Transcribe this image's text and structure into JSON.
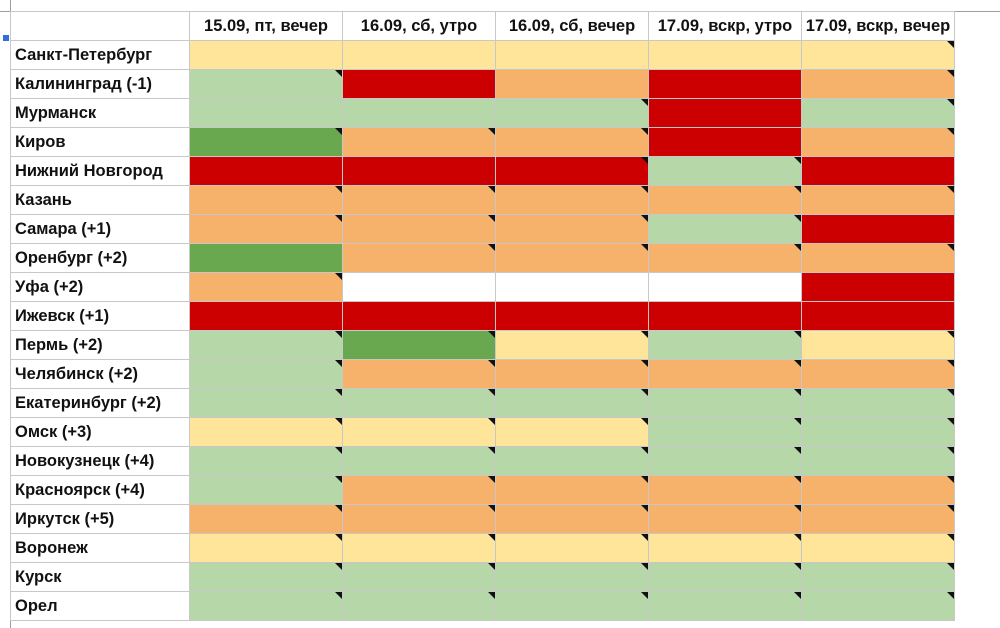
{
  "colors": {
    "red": "#cc0000",
    "orange": "#f6b26b",
    "yellow": "#ffe599",
    "lightgreen": "#b6d7a8",
    "green": "#6aa84f",
    "white": "#ffffff"
  },
  "sheet": {
    "headers": [
      "",
      "15.09, пт, вечер",
      "16.09, сб, утро",
      "16.09, сб, вечер",
      "17.09, вскр, утро",
      "17.09, вскр, вечер"
    ],
    "rows": [
      {
        "city": "Санкт-Петербург",
        "cells": [
          "yellow",
          "yellow",
          "yellow",
          "yellow",
          "yellow"
        ],
        "marks": [
          0,
          0,
          0,
          0,
          1
        ]
      },
      {
        "city": "Калининград (-1)",
        "cells": [
          "lightgreen",
          "red",
          "orange",
          "red",
          "orange"
        ],
        "marks": [
          1,
          0,
          0,
          0,
          1
        ]
      },
      {
        "city": "Мурманск",
        "cells": [
          "lightgreen",
          "lightgreen",
          "lightgreen",
          "red",
          "lightgreen"
        ],
        "marks": [
          0,
          0,
          1,
          0,
          1
        ]
      },
      {
        "city": "Киров",
        "cells": [
          "green",
          "orange",
          "orange",
          "red",
          "orange"
        ],
        "marks": [
          1,
          1,
          1,
          0,
          1
        ]
      },
      {
        "city": "Нижний Новгород",
        "cells": [
          "red",
          "red",
          "red",
          "lightgreen",
          "red"
        ],
        "marks": [
          0,
          0,
          1,
          1,
          0
        ]
      },
      {
        "city": "Казань",
        "cells": [
          "orange",
          "orange",
          "orange",
          "orange",
          "orange"
        ],
        "marks": [
          1,
          1,
          1,
          1,
          1
        ]
      },
      {
        "city": "Самара (+1)",
        "cells": [
          "orange",
          "orange",
          "orange",
          "lightgreen",
          "red"
        ],
        "marks": [
          1,
          1,
          1,
          1,
          0
        ]
      },
      {
        "city": "Оренбург (+2)",
        "cells": [
          "green",
          "orange",
          "orange",
          "orange",
          "orange"
        ],
        "marks": [
          0,
          1,
          1,
          1,
          1
        ]
      },
      {
        "city": "Уфа (+2)",
        "cells": [
          "orange",
          "white",
          "white",
          "white",
          "red"
        ],
        "marks": [
          1,
          0,
          0,
          0,
          0
        ]
      },
      {
        "city": "Ижевск (+1)",
        "cells": [
          "red",
          "red",
          "red",
          "red",
          "red"
        ],
        "marks": [
          0,
          0,
          0,
          0,
          0
        ]
      },
      {
        "city": "Пермь (+2)",
        "cells": [
          "lightgreen",
          "green",
          "yellow",
          "lightgreen",
          "yellow"
        ],
        "marks": [
          1,
          1,
          1,
          1,
          1
        ]
      },
      {
        "city": "Челябинск (+2)",
        "cells": [
          "lightgreen",
          "orange",
          "orange",
          "orange",
          "orange"
        ],
        "marks": [
          1,
          1,
          1,
          1,
          1
        ]
      },
      {
        "city": "Екатеринбург (+2)",
        "cells": [
          "lightgreen",
          "lightgreen",
          "lightgreen",
          "lightgreen",
          "lightgreen"
        ],
        "marks": [
          1,
          1,
          1,
          1,
          1
        ]
      },
      {
        "city": "Омск (+3)",
        "cells": [
          "yellow",
          "yellow",
          "yellow",
          "lightgreen",
          "lightgreen"
        ],
        "marks": [
          1,
          1,
          1,
          1,
          1
        ]
      },
      {
        "city": "Новокузнецк (+4)",
        "cells": [
          "lightgreen",
          "lightgreen",
          "lightgreen",
          "lightgreen",
          "lightgreen"
        ],
        "marks": [
          1,
          1,
          1,
          1,
          1
        ]
      },
      {
        "city": "Красноярск (+4)",
        "cells": [
          "lightgreen",
          "orange",
          "orange",
          "orange",
          "orange"
        ],
        "marks": [
          1,
          1,
          1,
          1,
          1
        ]
      },
      {
        "city": "Иркутск (+5)",
        "cells": [
          "orange",
          "orange",
          "orange",
          "orange",
          "orange"
        ],
        "marks": [
          1,
          1,
          1,
          1,
          1
        ]
      },
      {
        "city": "Воронеж",
        "cells": [
          "yellow",
          "yellow",
          "yellow",
          "yellow",
          "yellow"
        ],
        "marks": [
          1,
          1,
          1,
          1,
          1
        ]
      },
      {
        "city": "Курск",
        "cells": [
          "lightgreen",
          "lightgreen",
          "lightgreen",
          "lightgreen",
          "lightgreen"
        ],
        "marks": [
          1,
          1,
          1,
          1,
          1
        ]
      },
      {
        "city": "Орел",
        "cells": [
          "lightgreen",
          "lightgreen",
          "lightgreen",
          "lightgreen",
          "lightgreen"
        ],
        "marks": [
          1,
          1,
          1,
          1,
          1
        ]
      }
    ]
  }
}
